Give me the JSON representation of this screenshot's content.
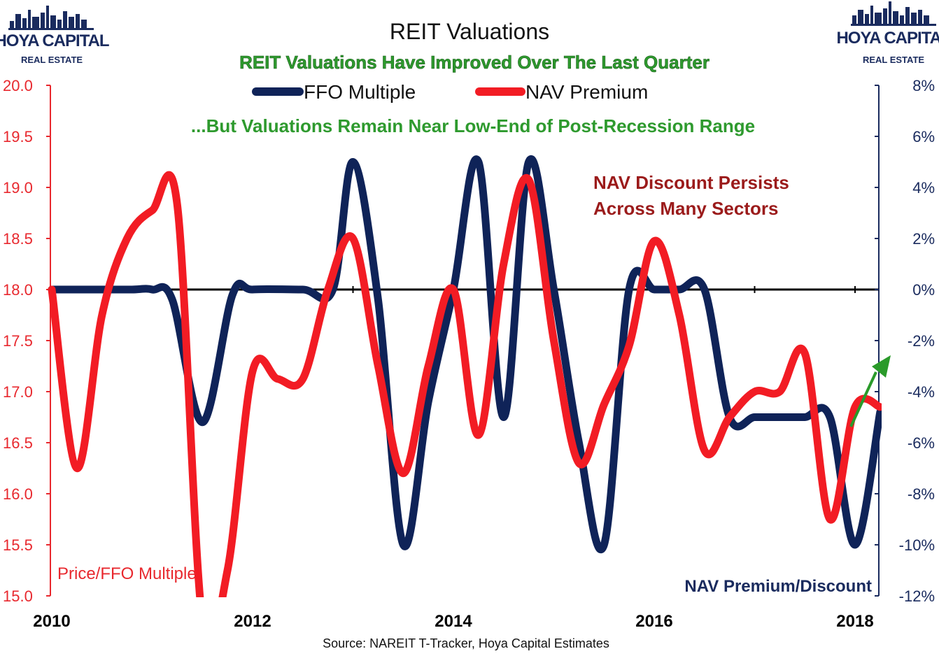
{
  "logos": {
    "left": {
      "main": "HOYA CAPITAL",
      "sub": "REAL ESTATE"
    },
    "right": {
      "main": "HOYA CAPITAL",
      "sub": "REAL ESTATE"
    }
  },
  "colors": {
    "ffo": "#0f2358",
    "nav": "#f21c24",
    "left_axis": "#e8282e",
    "right_axis": "#1a2b5e",
    "subtitle": "#2e9a2e",
    "annotation": "#9b1b1b",
    "arrow": "#2a9a2a"
  },
  "chart_data": {
    "type": "line",
    "title": "REIT Valuations",
    "subtitle": "REIT Valuations Have Improved Over The Last Quarter",
    "subtitle2": "...But Valuations Remain Near Low-End of Post-Recession Range",
    "annotation": [
      "NAV Discount Persists",
      "Across Many Sectors"
    ],
    "source": "Source: NAREIT T-Tracker, Hoya Capital Estimates",
    "ylabel_left": "Price/FFO Multiple",
    "ylabel_right": "NAV Premium/Discount",
    "ylim_left": [
      15.0,
      20.0
    ],
    "ylim_right": [
      -12,
      8
    ],
    "xlim": [
      2010,
      2018.3
    ],
    "x_ticks": [
      "2010",
      "2012",
      "2014",
      "2016",
      "2018"
    ],
    "y_ticks_left": [
      "20.0",
      "19.5",
      "19.0",
      "18.5",
      "18.0",
      "17.5",
      "17.0",
      "16.5",
      "16.0",
      "15.5",
      "15.0"
    ],
    "y_ticks_right": [
      "8%",
      "6%",
      "4%",
      "2%",
      "0%",
      "-2%",
      "-4%",
      "-6%",
      "-8%",
      "-10%",
      "-12%"
    ],
    "legend_position": "top-center",
    "series": [
      {
        "name": "FFO Multiple",
        "axis": "left",
        "x": [
          2010.0,
          2010.5,
          2010.8,
          2011.0,
          2011.2,
          2011.5,
          2011.8,
          2012.0,
          2012.5,
          2012.8,
          2013.0,
          2013.25,
          2013.5,
          2013.75,
          2014.0,
          2014.25,
          2014.5,
          2014.75,
          2015.0,
          2015.25,
          2015.5,
          2015.75,
          2016.0,
          2016.25,
          2016.5,
          2016.75,
          2017.0,
          2017.25,
          2017.5,
          2017.75,
          2018.0,
          2018.25
        ],
        "values": [
          18.0,
          18.0,
          18.0,
          18.0,
          17.9,
          16.7,
          17.95,
          18.0,
          18.0,
          18.0,
          19.25,
          17.9,
          15.5,
          16.9,
          18.0,
          19.25,
          16.75,
          19.25,
          18.0,
          16.5,
          15.5,
          18.0,
          18.0,
          18.0,
          18.0,
          16.75,
          16.75,
          16.75,
          16.75,
          16.75,
          15.5,
          16.8
        ]
      },
      {
        "name": "NAV Premium",
        "axis": "right",
        "x": [
          2010.0,
          2010.25,
          2010.5,
          2010.75,
          2011.0,
          2011.25,
          2011.5,
          2011.75,
          2012.0,
          2012.25,
          2012.5,
          2012.75,
          2013.0,
          2013.25,
          2013.5,
          2013.75,
          2014.0,
          2014.25,
          2014.5,
          2014.75,
          2015.0,
          2015.25,
          2015.5,
          2015.75,
          2016.0,
          2016.25,
          2016.5,
          2016.75,
          2017.0,
          2017.25,
          2017.5,
          2017.75,
          2018.0,
          2018.25
        ],
        "values": [
          0,
          -7,
          -1,
          2,
          3.1,
          3.3,
          -13,
          -11,
          -3.2,
          -3.5,
          -3.5,
          0,
          2,
          -3,
          -7.2,
          -3,
          0,
          -5.7,
          1,
          4.3,
          -2,
          -6.8,
          -4.5,
          -2.2,
          1.9,
          -1,
          -6.3,
          -5,
          -4,
          -4,
          -2.5,
          -9,
          -4.6,
          -4.6
        ]
      }
    ]
  }
}
